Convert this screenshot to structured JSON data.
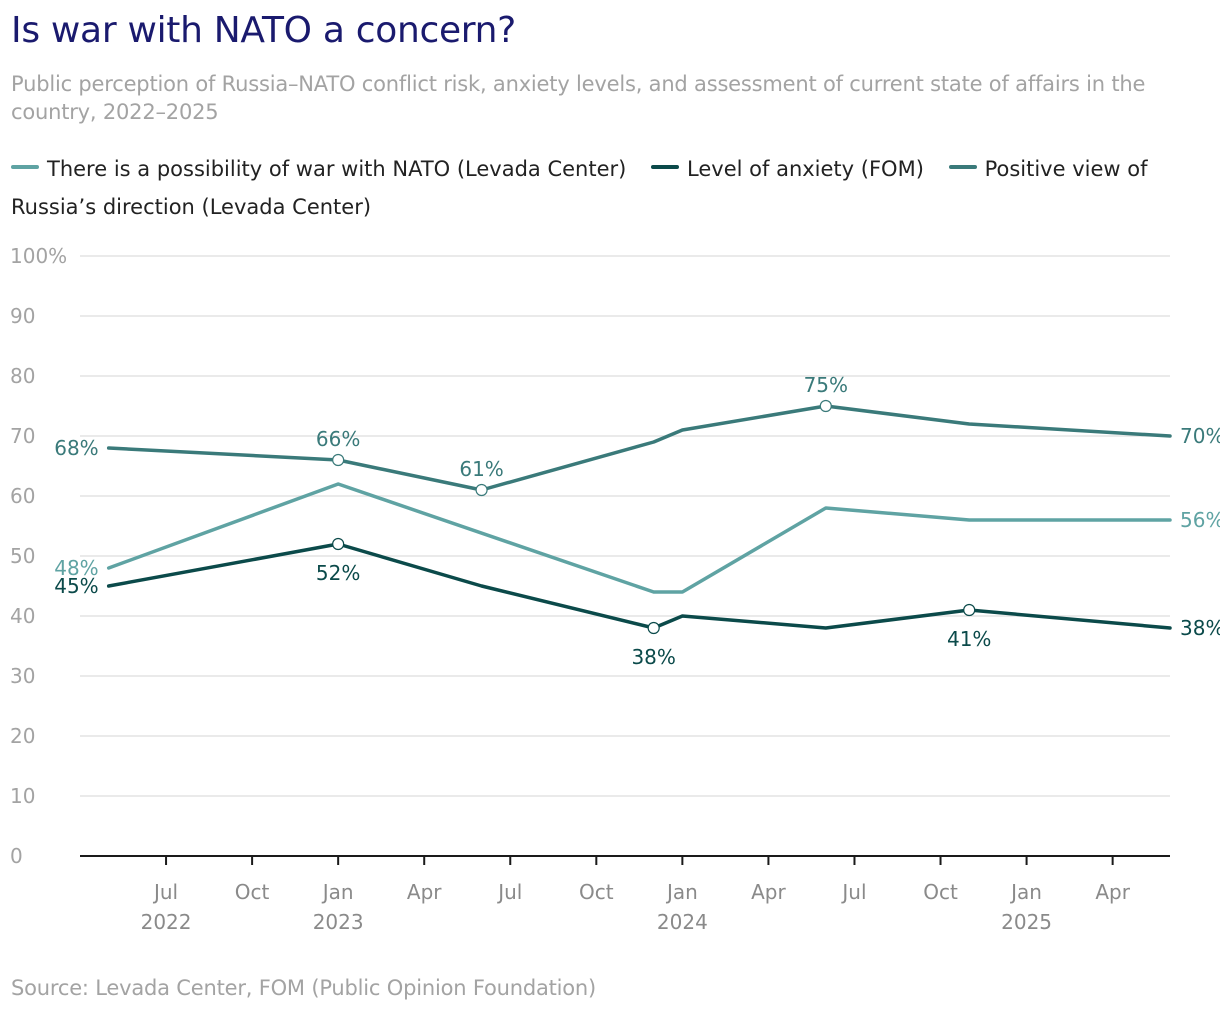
{
  "title": "Is war with NATO a concern?",
  "subtitle": "Public perception of Russia–NATO conflict risk, anxiety levels, and assessment of current state of affairs in the country, 2022–2025",
  "source": "Source: Levada Center, FOM (Public Opinion Foundation)",
  "colors": {
    "title": "#1a1a6e",
    "war_nato": "#5fa3a3",
    "anxiety": "#0b4a4a",
    "positive": "#3a7a7a",
    "grid": "#e3e3e3",
    "axis_text": "#a3a3a3"
  },
  "chart_data": {
    "type": "line",
    "title": "Is war with NATO a concern?",
    "ylim": [
      0,
      100
    ],
    "y_ticks": [
      "0",
      "10",
      "20",
      "30",
      "40",
      "50",
      "60",
      "70",
      "80",
      "90",
      "100%"
    ],
    "y_tick_values": [
      0,
      10,
      20,
      30,
      40,
      50,
      60,
      70,
      80,
      90,
      100
    ],
    "xlim": [
      "2022-04",
      "2025-06"
    ],
    "x_ticks": [
      {
        "date": "2022-07",
        "label": "Jul",
        "year": "2022"
      },
      {
        "date": "2022-10",
        "label": "Oct",
        "year": ""
      },
      {
        "date": "2023-01",
        "label": "Jan",
        "year": "2023"
      },
      {
        "date": "2023-04",
        "label": "Apr",
        "year": ""
      },
      {
        "date": "2023-07",
        "label": "Jul",
        "year": ""
      },
      {
        "date": "2023-10",
        "label": "Oct",
        "year": ""
      },
      {
        "date": "2024-01",
        "label": "Jan",
        "year": "2024"
      },
      {
        "date": "2024-04",
        "label": "Apr",
        "year": ""
      },
      {
        "date": "2024-07",
        "label": "Jul",
        "year": ""
      },
      {
        "date": "2024-10",
        "label": "Oct",
        "year": ""
      },
      {
        "date": "2025-01",
        "label": "Jan",
        "year": "2025"
      },
      {
        "date": "2025-04",
        "label": "Apr",
        "year": ""
      }
    ],
    "legend_position": "top-left",
    "grid": true,
    "series": [
      {
        "name": "There is a possibility of war with NATO (Levada Center)",
        "key": "war_nato",
        "points": [
          {
            "x": "2022-05",
            "y": 48,
            "label": "48%",
            "pos": "left"
          },
          {
            "x": "2023-01",
            "y": 62
          },
          {
            "x": "2023-12",
            "y": 44
          },
          {
            "x": "2024-01",
            "y": 44
          },
          {
            "x": "2024-06",
            "y": 58
          },
          {
            "x": "2024-11",
            "y": 56
          },
          {
            "x": "2025-06",
            "y": 56,
            "label": "56%",
            "pos": "right"
          }
        ]
      },
      {
        "name": "Level of anxiety (FOM)",
        "key": "anxiety",
        "points": [
          {
            "x": "2022-05",
            "y": 45,
            "label": "45%",
            "pos": "left"
          },
          {
            "x": "2023-01",
            "y": 52,
            "label": "52%",
            "pos": "below",
            "marker": true
          },
          {
            "x": "2023-06",
            "y": 45
          },
          {
            "x": "2023-12",
            "y": 38,
            "label": "38%",
            "pos": "below",
            "marker": true
          },
          {
            "x": "2024-01",
            "y": 40
          },
          {
            "x": "2024-06",
            "y": 38
          },
          {
            "x": "2024-11",
            "y": 41,
            "label": "41%",
            "pos": "below",
            "marker": true
          },
          {
            "x": "2025-06",
            "y": 38,
            "label": "38%",
            "pos": "right"
          }
        ]
      },
      {
        "name": "Positive view of Russia’s direction (Levada Center)",
        "key": "positive",
        "points": [
          {
            "x": "2022-05",
            "y": 68,
            "label": "68%",
            "pos": "left"
          },
          {
            "x": "2023-01",
            "y": 66,
            "label": "66%",
            "pos": "above",
            "marker": true
          },
          {
            "x": "2023-06",
            "y": 61,
            "label": "61%",
            "pos": "above",
            "marker": true
          },
          {
            "x": "2023-12",
            "y": 69
          },
          {
            "x": "2024-01",
            "y": 71
          },
          {
            "x": "2024-06",
            "y": 75,
            "label": "75%",
            "pos": "above",
            "marker": true
          },
          {
            "x": "2024-11",
            "y": 72
          },
          {
            "x": "2025-06",
            "y": 70,
            "label": "70%",
            "pos": "right"
          }
        ]
      }
    ]
  }
}
